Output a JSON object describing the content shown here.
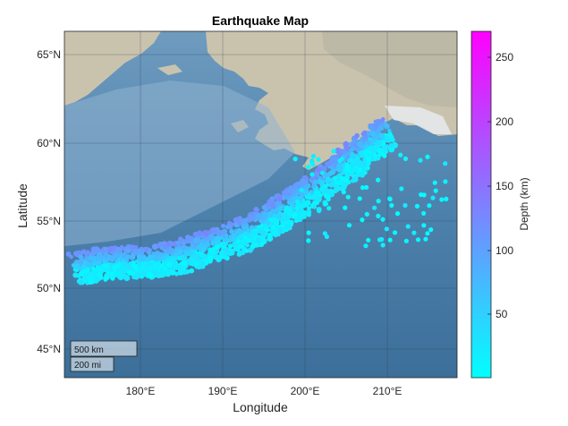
{
  "chart_data": {
    "type": "scatter",
    "title": "Earthquake Map",
    "xlabel": "Longitude",
    "ylabel": "Latitude",
    "x_ticks": [
      "180°E",
      "190°E",
      "200°E",
      "210°E"
    ],
    "y_ticks": [
      "45°N",
      "50°N",
      "55°N",
      "60°N",
      "65°N"
    ],
    "colorbar": {
      "label": "Depth (km)",
      "ticks": [
        "50",
        "100",
        "150",
        "200",
        "250"
      ],
      "range": [
        0,
        270
      ],
      "colormap": "cool"
    },
    "scale_bar": {
      "km": "500 km",
      "mi": "200 mi"
    },
    "grid": true,
    "basemap": "satellite"
  },
  "colors": {
    "low_depth": "#00ffff",
    "high_depth": "#ff00ff",
    "ocean": "#4e7fa6",
    "land": "#c8c2ae"
  }
}
